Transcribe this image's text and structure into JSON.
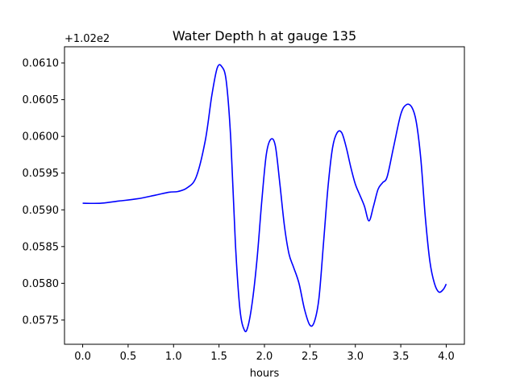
{
  "chart_data": {
    "type": "line",
    "title": "Water Depth h at gauge 135",
    "xlabel": "hours",
    "ylabel": "",
    "offset_label": "+1.02e2",
    "xlim": [
      -0.2,
      4.2
    ],
    "ylim": [
      0.05717,
      0.06122
    ],
    "x_ticks": [
      0.0,
      0.5,
      1.0,
      1.5,
      2.0,
      2.5,
      3.0,
      3.5,
      4.0
    ],
    "x_tick_labels": [
      "0.0",
      "0.5",
      "1.0",
      "1.5",
      "2.0",
      "2.5",
      "3.0",
      "3.5",
      "4.0"
    ],
    "y_ticks": [
      0.0575,
      0.058,
      0.0585,
      0.059,
      0.0595,
      0.06,
      0.0605,
      0.061
    ],
    "y_tick_labels": [
      "0.0575",
      "0.0580",
      "0.0585",
      "0.0590",
      "0.0595",
      "0.0600",
      "0.0605",
      "0.0610"
    ],
    "grid": false,
    "series": [
      {
        "color": "#0000ff",
        "x": [
          0.0,
          0.2,
          0.4,
          0.6,
          0.8,
          0.95,
          1.05,
          1.15,
          1.25,
          1.35,
          1.42,
          1.48,
          1.53,
          1.58,
          1.63,
          1.68,
          1.73,
          1.78,
          1.82,
          1.87,
          1.92,
          1.97,
          2.02,
          2.07,
          2.12,
          2.17,
          2.22,
          2.27,
          2.32,
          2.38,
          2.44,
          2.5,
          2.55,
          2.6,
          2.65,
          2.7,
          2.75,
          2.8,
          2.85,
          2.9,
          2.95,
          3.0,
          3.05,
          3.1,
          3.15,
          3.2,
          3.25,
          3.3,
          3.35,
          3.42,
          3.5,
          3.56,
          3.62,
          3.67,
          3.72,
          3.77,
          3.82,
          3.87,
          3.92,
          3.97,
          4.0
        ],
        "y": [
          0.05909,
          0.05909,
          0.05912,
          0.05915,
          0.0592,
          0.05924,
          0.05925,
          0.0593,
          0.05945,
          0.05995,
          0.06055,
          0.06093,
          0.06095,
          0.06075,
          0.05995,
          0.05855,
          0.05765,
          0.05736,
          0.05742,
          0.05778,
          0.05835,
          0.05911,
          0.05975,
          0.05996,
          0.05987,
          0.05935,
          0.05878,
          0.0584,
          0.05822,
          0.058,
          0.05765,
          0.05743,
          0.05748,
          0.0578,
          0.05855,
          0.05932,
          0.05985,
          0.06005,
          0.06005,
          0.05985,
          0.05958,
          0.05935,
          0.0592,
          0.05905,
          0.05885,
          0.05905,
          0.05928,
          0.05937,
          0.05945,
          0.05985,
          0.0603,
          0.06043,
          0.0604,
          0.0602,
          0.0597,
          0.0589,
          0.0583,
          0.058,
          0.05788,
          0.05792,
          0.05799
        ]
      }
    ]
  }
}
